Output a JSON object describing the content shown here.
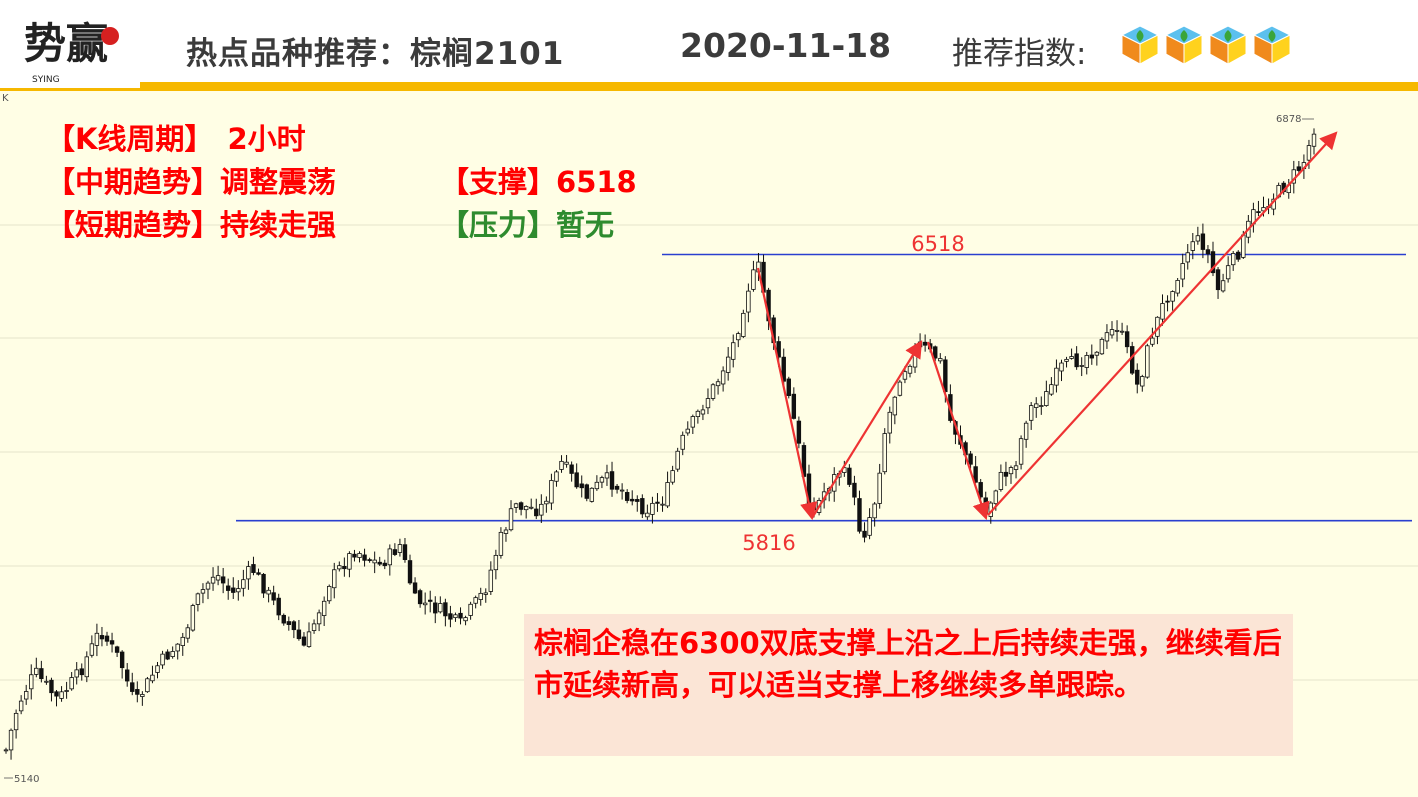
{
  "header": {
    "logo_text": "势赢",
    "logo_subtext": "SYING",
    "title": "热点品种推荐：棕榈2101",
    "date": "2020-11-18",
    "index_label": "推荐指数:",
    "rating_count": 4
  },
  "info": {
    "kline_label": "【K线周期】",
    "kline_value": "2小时",
    "mid_trend_label": "【中期趋势】",
    "mid_trend_value": "调整震荡",
    "support_label": "【支撑】",
    "support_value": "6518",
    "short_trend_label": "【短期趋势】",
    "short_trend_value": "持续走强",
    "pressure_label": "【压力】",
    "pressure_value": "暂无"
  },
  "note": {
    "text": "棕榈企稳在6300双底支撑上沿之上后持续走强，继续看后市延续新高，可以适当支撑上移继续多单跟踪。"
  },
  "colors": {
    "accent": "#f6b800",
    "red_text": "#ff0000",
    "green_text": "#2e8b2e",
    "chart_bg": "#fffee5",
    "level_line": "#2a3fcf",
    "arrow": "#ee3333"
  },
  "chart_data": {
    "type": "candlestick",
    "corner_label": "K",
    "price_high": 6878,
    "price_low": 5140,
    "levels": [
      {
        "label": "6518",
        "value": 6518
      },
      {
        "label": "5816",
        "value": 5816
      }
    ],
    "high_label": "6878",
    "low_label": "5140"
  }
}
